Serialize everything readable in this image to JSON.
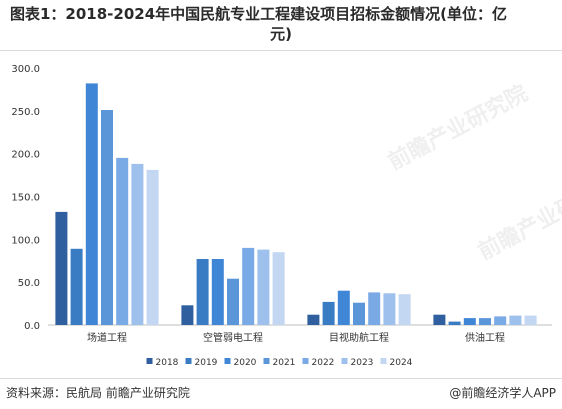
{
  "title_line1": "图表1：2018-2024年中国民航专业工程建设项目招标金额情况(单位：亿",
  "title_line2": "元)",
  "footer": {
    "source": "资料来源：民航局 前瞻产业研究院",
    "brand": "@前瞻经济学人APP"
  },
  "watermark": "前瞻产业研究院",
  "chart_data": {
    "type": "bar",
    "title": "图表1：2018-2024年中国民航专业工程建设项目招标金额情况(单位：亿元)",
    "categories": [
      "场道工程",
      "空管弱电工程",
      "目视助航工程",
      "供油工程"
    ],
    "ylim": [
      0,
      300
    ],
    "yticks": [
      "0.0",
      "50.0",
      "100.0",
      "150.0",
      "200.0",
      "250.0",
      "300.0"
    ],
    "legend_position": "bottom",
    "grid": false,
    "colors": [
      "#2f5f9e",
      "#3a7cc4",
      "#3f86d6",
      "#5b96d9",
      "#7aaae6",
      "#9dc0ec",
      "#c3d6f2"
    ],
    "series": [
      {
        "name": "2018",
        "values": [
          132,
          23,
          12,
          12
        ]
      },
      {
        "name": "2019",
        "values": [
          89,
          77,
          27,
          4
        ]
      },
      {
        "name": "2020",
        "values": [
          282,
          77,
          40,
          8
        ]
      },
      {
        "name": "2021",
        "values": [
          251,
          54,
          26,
          8
        ]
      },
      {
        "name": "2022",
        "values": [
          195,
          90,
          38,
          10
        ]
      },
      {
        "name": "2023",
        "values": [
          188,
          88,
          37,
          11
        ]
      },
      {
        "name": "2024",
        "values": [
          181,
          85,
          36,
          11
        ]
      }
    ]
  }
}
